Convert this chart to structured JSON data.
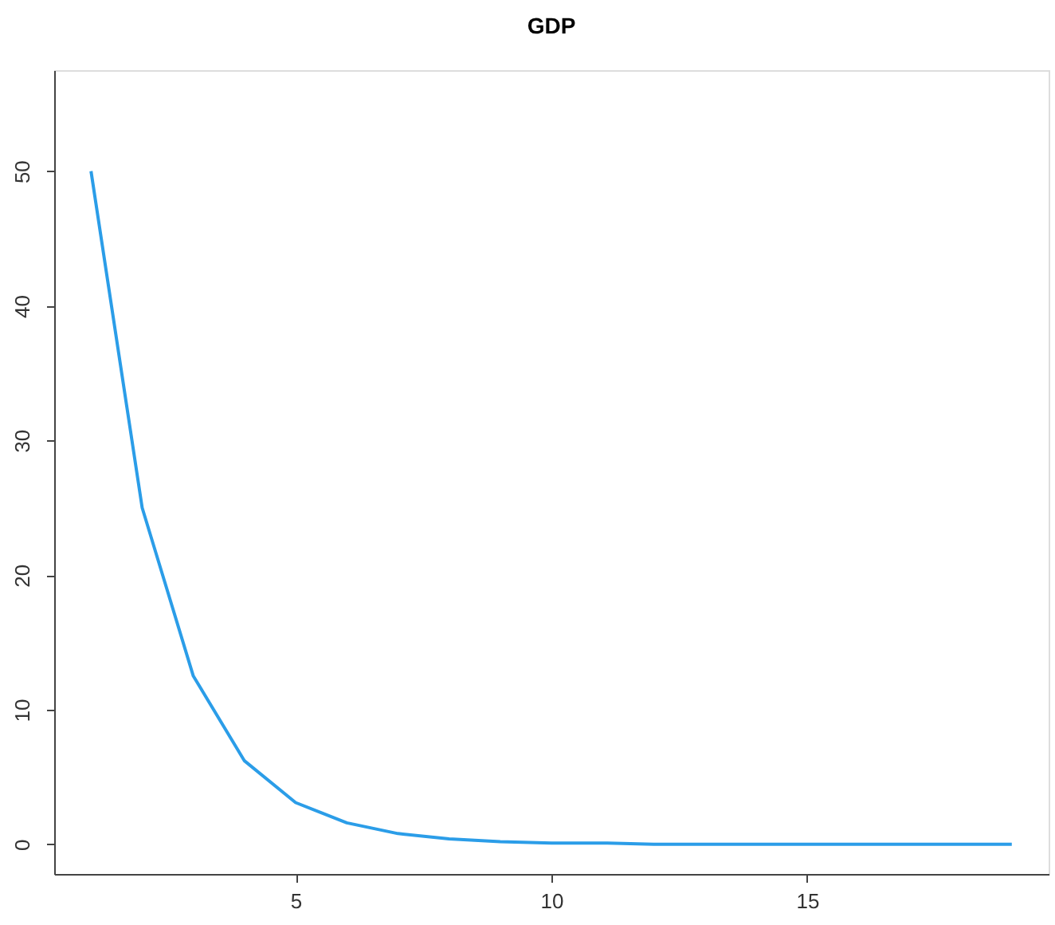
{
  "chart_data": {
    "type": "line",
    "title": "GDP",
    "x": [
      1,
      2,
      3,
      4,
      5,
      6,
      7,
      8,
      9,
      10,
      11,
      12,
      13,
      14,
      15,
      16,
      17,
      18,
      19
    ],
    "series": [
      {
        "color": "#2b9de8",
        "values": [
          50,
          25,
          12.5,
          6.2,
          3.1,
          1.6,
          0.8,
          0.4,
          0.2,
          0.1,
          0.1,
          0,
          0,
          0,
          0,
          0,
          0,
          0,
          0
        ]
      }
    ],
    "xlim": [
      0.28,
      19.72
    ],
    "xticks": [
      5,
      10,
      15
    ],
    "ylim": [
      -2.2,
      57.5
    ],
    "yticks": [
      0,
      10,
      20,
      30,
      40,
      50
    ],
    "grid": false,
    "marker": "none",
    "line_style": "solid"
  }
}
